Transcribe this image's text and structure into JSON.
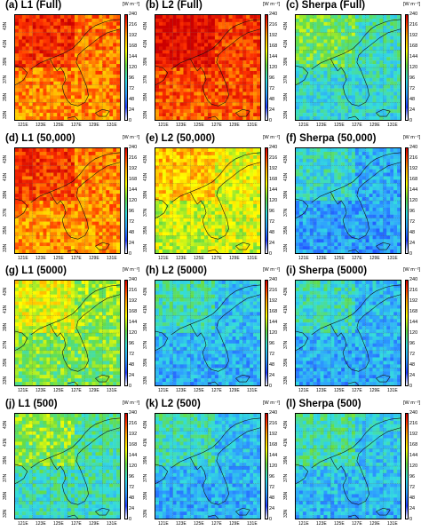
{
  "colorbar": {
    "unit": "[W m⁻²]",
    "ticks": [
      "240",
      "216",
      "192",
      "168",
      "144",
      "120",
      "96",
      "72",
      "48",
      "24",
      "0"
    ]
  },
  "axes": {
    "lat_labels": [
      "43N",
      "41N",
      "39N",
      "37N",
      "35N",
      "33N"
    ],
    "lon_labels": [
      "121E",
      "123E",
      "125E",
      "127E",
      "129E",
      "131E"
    ]
  },
  "panels": [
    {
      "title": "(a) L1 (Full)",
      "intensity": 0.82
    },
    {
      "title": "(b) L2 (Full)",
      "intensity": 0.9
    },
    {
      "title": "(c) Sherpa (Full)",
      "intensity": 0.35
    },
    {
      "title": "(d) L1 (50,000)",
      "intensity": 0.8
    },
    {
      "title": "(e) L2 (50,000)",
      "intensity": 0.6
    },
    {
      "title": "(f) Sherpa (50,000)",
      "intensity": 0.22
    },
    {
      "title": "(g) L1 (5000)",
      "intensity": 0.5
    },
    {
      "title": "(h) L2 (5000)",
      "intensity": 0.25
    },
    {
      "title": "(i) Sherpa (5000)",
      "intensity": 0.24
    },
    {
      "title": "(j) L1 (500)",
      "intensity": 0.38
    },
    {
      "title": "(k) L2 (500)",
      "intensity": 0.25
    },
    {
      "title": "(l) Sherpa (500)",
      "intensity": 0.27
    }
  ],
  "colors": {
    "scale": [
      "#1e3cff",
      "#2ea0ff",
      "#33dddd",
      "#66dd44",
      "#ffff00",
      "#ffaa00",
      "#ff3300",
      "#cc0000"
    ]
  }
}
